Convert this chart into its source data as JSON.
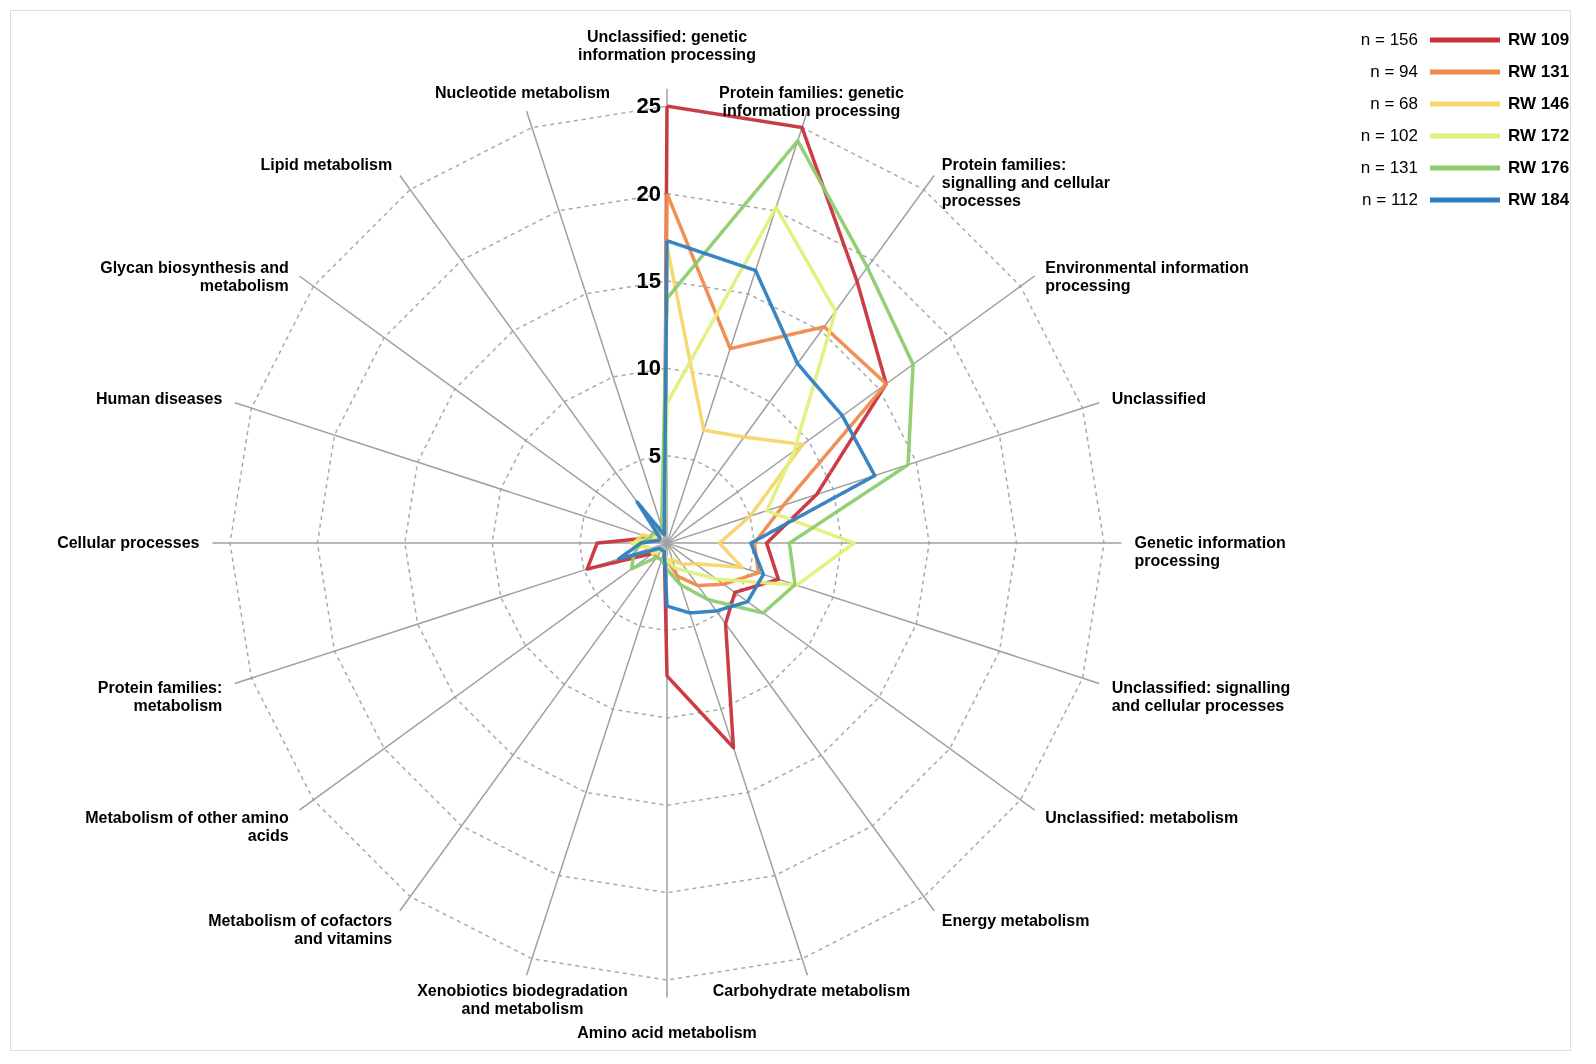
{
  "chart_data": {
    "type": "radar",
    "categories": [
      "Unclassified: genetic information processing",
      "Protein families: genetic information processing",
      "Protein families: signalling and cellular processes",
      "Environmental information processing",
      "Unclassified",
      "Genetic information processing",
      "Unclassified: signalling and cellular processes",
      "Unclassified: metabolism",
      "Energy metabolism",
      "Carbohydrate metabolism",
      "Amino acid metabolism",
      "Xenobiotics biodegradation and metabolism",
      "Metabolism of cofactors and vitamins",
      "Metabolism of other amino acids",
      "Protein families: metabolism",
      "Cellular processes",
      "Human diseases",
      "Glycan biosynthesis and metabolism",
      "Lipid metabolism",
      "Nucleotide metabolism"
    ],
    "series": [
      {
        "name": "RW 109",
        "color": "#c8323c",
        "values": [
          25,
          25,
          18.5,
          15.5,
          9,
          5.7,
          6.7,
          4.8,
          5.7,
          12.3,
          7.6,
          0.5,
          0.5,
          1,
          4.8,
          4,
          1,
          0.5,
          0.5,
          0.5
        ]
      },
      {
        "name": "RW 131",
        "color": "#f08a4b",
        "values": [
          20,
          11.7,
          15.3,
          15.5,
          7,
          5,
          5.5,
          4,
          3,
          2,
          1,
          1,
          1,
          1,
          1,
          2,
          0.5,
          0.5,
          0.5,
          0.5
        ]
      },
      {
        "name": "RW 146",
        "color": "#f6d66a",
        "values": [
          17,
          6.8,
          7.5,
          9.6,
          5,
          3,
          4.5,
          2,
          1.5,
          1,
          1,
          0.5,
          0.5,
          1,
          1,
          1.9,
          1.5,
          0.5,
          0.5,
          0.5
        ]
      },
      {
        "name": "RW 172",
        "color": "#e3f07a",
        "values": [
          8,
          20.2,
          16.4,
          9,
          6,
          10.7,
          7.8,
          3.5,
          2,
          1.5,
          1,
          0.5,
          0.5,
          1,
          1,
          2,
          1,
          0.5,
          0.5,
          0.5
        ]
      },
      {
        "name": "RW 176",
        "color": "#8ccc6e",
        "values": [
          14,
          24.2,
          19.5,
          17.4,
          14.5,
          7,
          7.7,
          6.8,
          4,
          2.5,
          1.5,
          1,
          1,
          2.5,
          2,
          1.5,
          1,
          1,
          1,
          1
        ]
      },
      {
        "name": "RW 184",
        "color": "#2f7ec0",
        "values": [
          17.3,
          16.4,
          12.7,
          12.4,
          12.5,
          4.8,
          5.8,
          5.7,
          4.8,
          4.2,
          3.6,
          0.5,
          0.5,
          0.5,
          2.9,
          1.5,
          0.5,
          0.5,
          2.9,
          0.5
        ]
      }
    ],
    "ylim": [
      0,
      25
    ],
    "yticks": [
      5,
      10,
      15,
      20,
      25
    ],
    "grid": true,
    "legend": "top right",
    "line_style": "solid",
    "annotations": [
      "n = 156",
      "n = 94",
      "n = 68",
      "n = 102",
      "n = 131",
      "n = 112"
    ]
  }
}
